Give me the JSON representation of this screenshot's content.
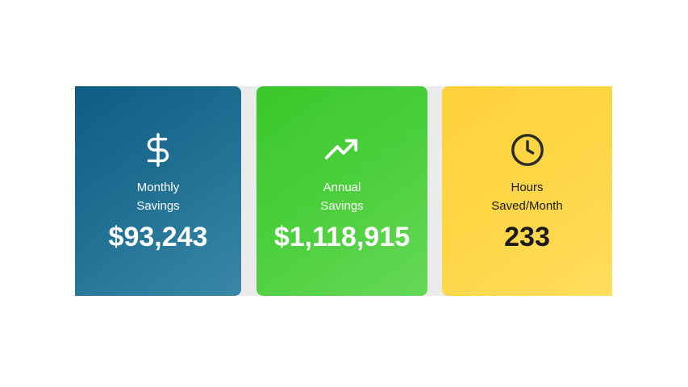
{
  "cards": [
    {
      "icon": "dollar-sign-icon",
      "label_line1": "Monthly",
      "label_line2": "Savings",
      "value": "$93,243",
      "color": "#1f6f93"
    },
    {
      "icon": "trending-up-icon",
      "label_line1": "Annual",
      "label_line2": "Savings",
      "value": "$1,118,915",
      "color": "#4ccf3c"
    },
    {
      "icon": "clock-icon",
      "label_line1": "Hours",
      "label_line2": "Saved/Month",
      "value": "233",
      "color": "#ffd646"
    }
  ]
}
